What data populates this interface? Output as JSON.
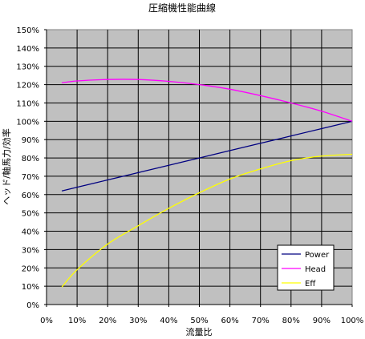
{
  "chart_data": {
    "type": "line",
    "title": "圧縮機性能曲線",
    "xlabel": "流量比",
    "ylabel": "ヘッド/軸馬力/効率",
    "xlim": [
      0,
      100
    ],
    "ylim": [
      0,
      150
    ],
    "x_ticks": [
      "0%",
      "10%",
      "20%",
      "30%",
      "40%",
      "50%",
      "60%",
      "70%",
      "80%",
      "90%",
      "100%"
    ],
    "y_ticks": [
      "0%",
      "10%",
      "20%",
      "30%",
      "40%",
      "50%",
      "60%",
      "70%",
      "80%",
      "90%",
      "100%",
      "110%",
      "120%",
      "130%",
      "140%",
      "150%"
    ],
    "grid": true,
    "plot_background": "#c0c0c0",
    "legend_position": "bottom-right",
    "series": [
      {
        "name": "Power",
        "color": "#000080",
        "x": [
          5,
          10,
          20,
          30,
          40,
          50,
          60,
          70,
          80,
          90,
          100
        ],
        "values": [
          62,
          64,
          68,
          72,
          76,
          80,
          84,
          88,
          92,
          96,
          100
        ]
      },
      {
        "name": "Head",
        "color": "#ff00ff",
        "x": [
          5,
          10,
          20,
          30,
          40,
          50,
          60,
          70,
          80,
          90,
          100
        ],
        "values": [
          121,
          122,
          122.8,
          122.8,
          121.8,
          120,
          117.5,
          114,
          110,
          105.5,
          100
        ]
      },
      {
        "name": "Eff",
        "color": "#ffff00",
        "x": [
          5,
          10,
          20,
          30,
          40,
          50,
          60,
          70,
          80,
          90,
          100
        ],
        "values": [
          9.5,
          19,
          33,
          43,
          52.5,
          61,
          68.5,
          74,
          78.5,
          81,
          82
        ]
      }
    ]
  }
}
